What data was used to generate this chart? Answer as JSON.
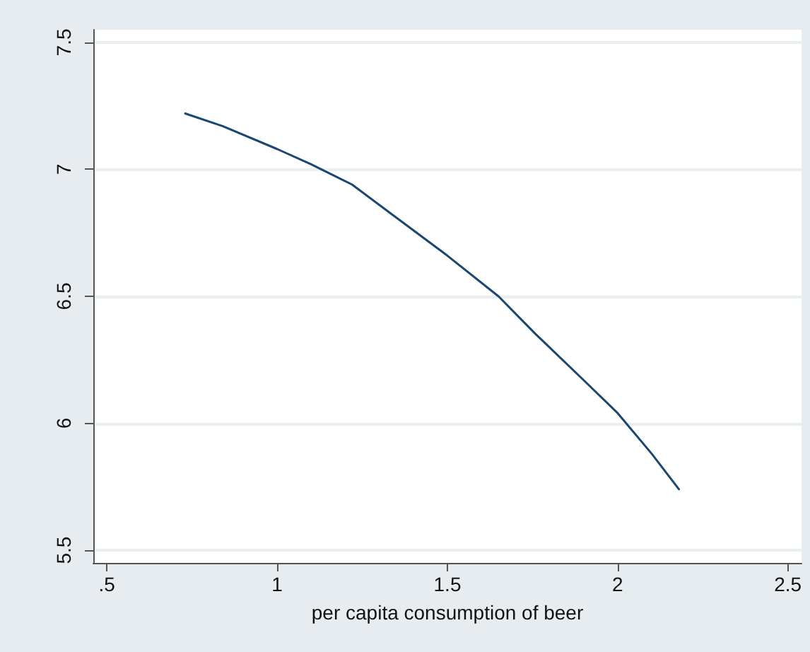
{
  "chart_data": {
    "type": "line",
    "xlabel": "per capita consumption of beer",
    "x": [
      0.73,
      0.84,
      1.0,
      1.1,
      1.22,
      1.35,
      1.5,
      1.65,
      1.76,
      1.9,
      2.0,
      2.1,
      2.18
    ],
    "series": [
      {
        "color": "#1a476f",
        "values": [
          7.22,
          7.17,
          7.08,
          7.02,
          6.94,
          6.81,
          6.66,
          6.5,
          6.35,
          6.17,
          6.04,
          5.88,
          5.74
        ]
      }
    ],
    "xlim": [
      0.46,
      2.54
    ],
    "ylim": [
      5.45,
      7.55
    ],
    "xticks": [
      {
        "value": 0.5,
        "label": ".5"
      },
      1,
      1.5,
      2,
      2.5
    ],
    "yticks": [
      5.5,
      6,
      6.5,
      7,
      7.5
    ],
    "grid": "y",
    "marker": "none",
    "line_style": "solid"
  }
}
